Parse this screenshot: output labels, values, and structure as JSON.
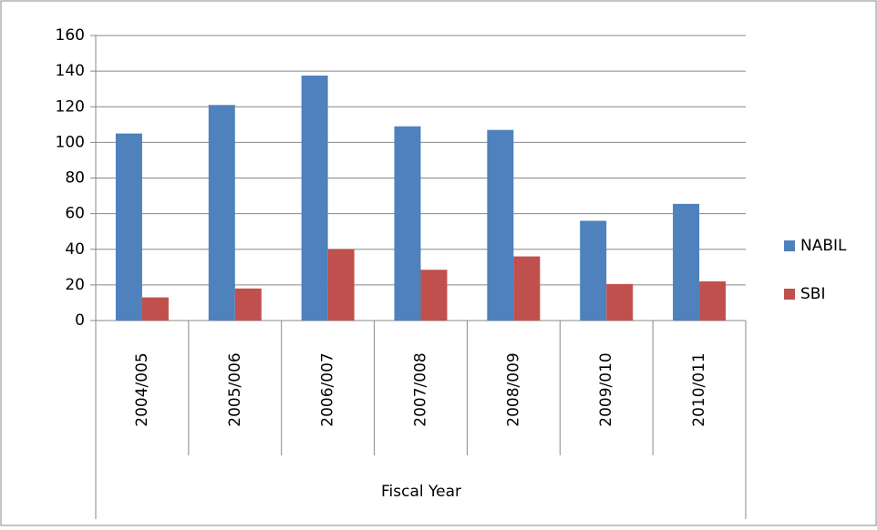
{
  "chart_data": {
    "type": "bar",
    "x_label": "Fiscal Year",
    "categories": [
      "2004/005",
      "2005/006",
      "2006/007",
      "2007/008",
      "2008/009",
      "2009/010",
      "2010/011"
    ],
    "series": [
      {
        "name": "NABIL",
        "color": "#4f81bd",
        "values": [
          105,
          121,
          137.5,
          109,
          107,
          56,
          65.5
        ]
      },
      {
        "name": "SBI",
        "color": "#c0504d",
        "values": [
          13,
          18,
          40,
          28.5,
          36,
          20.5,
          22
        ]
      }
    ],
    "ylim": [
      0,
      160
    ],
    "yticks": [
      0,
      20,
      40,
      60,
      80,
      100,
      120,
      140,
      160
    ],
    "grid": true,
    "legend": "right"
  }
}
